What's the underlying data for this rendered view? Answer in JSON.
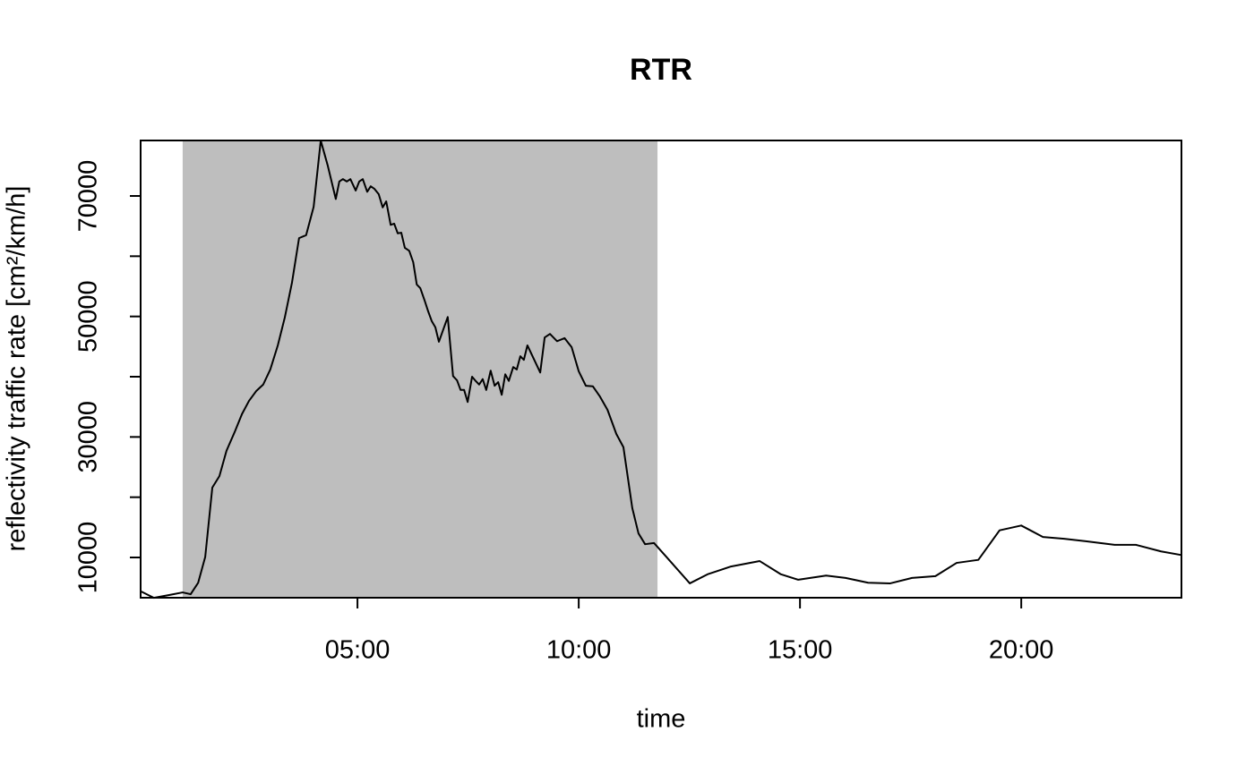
{
  "chart_data": {
    "type": "line",
    "title": "RTR",
    "xlabel": "time",
    "ylabel": "reflectivity traffic rate [cm²/km/h]",
    "xlim": [
      0.1,
      23.62
    ],
    "xticks": [
      {
        "value": 5,
        "label": "05:00"
      },
      {
        "value": 10,
        "label": "10:00"
      },
      {
        "value": 15,
        "label": "15:00"
      },
      {
        "value": 20,
        "label": "20:00"
      }
    ],
    "ylim": [
      3317,
      79208
    ],
    "yticks": [
      10000,
      30000,
      50000,
      70000
    ],
    "yminor_ticks": [
      20000,
      40000,
      60000
    ],
    "shaded_span": [
      1.05,
      11.78
    ],
    "shade_color": "#bebebe",
    "color": "#000000",
    "x": [
      0.1,
      0.4,
      0.77,
      1.05,
      1.23,
      1.4,
      1.56,
      1.72,
      1.88,
      2.04,
      2.23,
      2.39,
      2.55,
      2.71,
      2.87,
      3.03,
      3.2,
      3.36,
      3.52,
      3.68,
      3.84,
      4.01,
      4.17,
      4.33,
      4.51,
      4.59,
      4.67,
      4.76,
      4.84,
      4.96,
      5.04,
      5.12,
      5.22,
      5.3,
      5.38,
      5.48,
      5.57,
      5.65,
      5.75,
      5.83,
      5.91,
      5.99,
      6.07,
      6.17,
      6.26,
      6.34,
      6.42,
      6.52,
      6.6,
      6.68,
      6.76,
      6.84,
      7.04,
      7.16,
      7.25,
      7.33,
      7.41,
      7.49,
      7.59,
      7.67,
      7.75,
      7.83,
      7.91,
      8.01,
      8.1,
      8.18,
      8.26,
      8.34,
      8.42,
      8.52,
      8.6,
      8.68,
      8.76,
      8.84,
      9.13,
      9.23,
      9.35,
      9.51,
      9.68,
      9.84,
      10.0,
      10.16,
      10.32,
      10.48,
      10.65,
      10.85,
      11.01,
      11.21,
      11.35,
      11.5,
      11.7,
      11.98,
      12.51,
      12.91,
      13.44,
      14.09,
      14.57,
      14.96,
      15.59,
      16.03,
      16.54,
      17.04,
      17.53,
      18.06,
      18.54,
      19.03,
      19.51,
      20.0,
      20.49,
      20.97,
      21.46,
      22.11,
      22.59,
      23.16,
      23.62
    ],
    "values": [
      4400,
      3300,
      3800,
      4200,
      3900,
      5800,
      10100,
      21600,
      23500,
      27700,
      30900,
      33800,
      36000,
      37600,
      38700,
      41200,
      45200,
      49900,
      55600,
      63000,
      63500,
      68200,
      79200,
      75000,
      69500,
      72400,
      72800,
      72400,
      72800,
      70900,
      72400,
      72800,
      70700,
      71600,
      71200,
      70300,
      68100,
      69100,
      65200,
      65400,
      63800,
      63900,
      61400,
      60900,
      59000,
      55300,
      54700,
      52600,
      50800,
      49200,
      48200,
      45800,
      49900,
      40100,
      39400,
      37800,
      37800,
      35800,
      40000,
      39300,
      38700,
      39600,
      37800,
      41000,
      38500,
      39100,
      37000,
      40400,
      39300,
      41600,
      41200,
      43400,
      42800,
      45200,
      40700,
      46500,
      47100,
      45900,
      46400,
      44900,
      40900,
      38500,
      38400,
      36700,
      34500,
      30500,
      28300,
      18200,
      14000,
      12200,
      12400,
      10100,
      5700,
      7200,
      8500,
      9400,
      7200,
      6300,
      7000,
      6600,
      5800,
      5700,
      6600,
      6900,
      9100,
      9600,
      14500,
      15300,
      13400,
      13100,
      12700,
      12100,
      12100,
      11000,
      10400
    ]
  }
}
